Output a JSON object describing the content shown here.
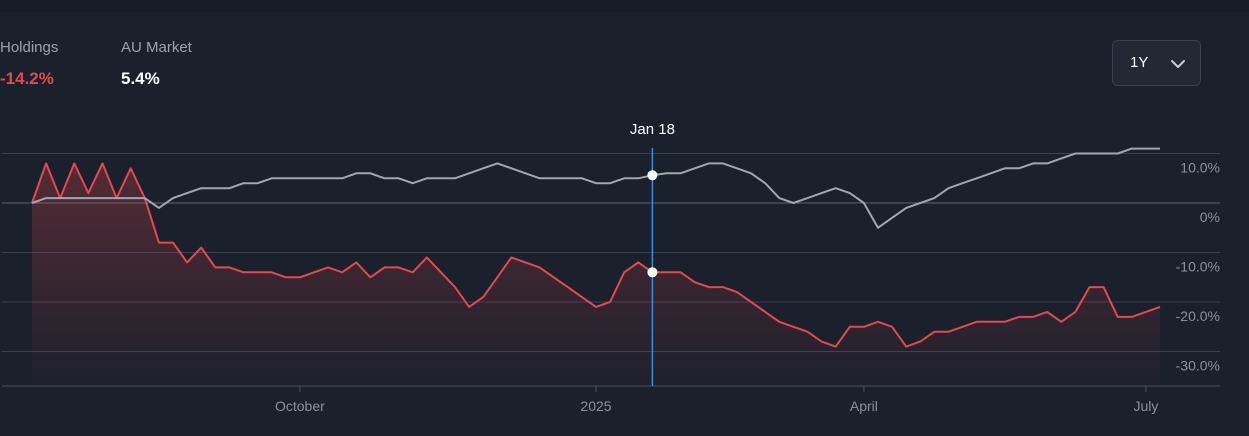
{
  "legend": {
    "holdings_label": "Holdings",
    "holdings_value": "-14.2%",
    "market_label": "AU Market",
    "market_value": "5.4%"
  },
  "period_select": {
    "selected": "1Y"
  },
  "chart_data": {
    "type": "line",
    "hover": {
      "label": "Jan 18",
      "index": 44,
      "holdings": -14.0,
      "market": 5.6
    },
    "x_ticks": [
      {
        "label": "October",
        "index": 19
      },
      {
        "label": "2025",
        "index": 40
      },
      {
        "label": "April",
        "index": 59
      },
      {
        "label": "July",
        "index": 79
      }
    ],
    "y_ticks": [
      {
        "label": "10.0%",
        "value": 10
      },
      {
        "label": "0%",
        "value": 0
      },
      {
        "label": "-10.0%",
        "value": -10
      },
      {
        "label": "-20.0%",
        "value": -20
      },
      {
        "label": "-30.0%",
        "value": -30
      }
    ],
    "ylim": [
      -37,
      11
    ],
    "series": [
      {
        "key": "holdings",
        "color": "#e5484d",
        "values": [
          0,
          8,
          1,
          8,
          2,
          8,
          1,
          7,
          1,
          -8,
          -8,
          -12,
          -9,
          -13,
          -13,
          -14,
          -14,
          -14,
          -15,
          -15,
          -14,
          -13,
          -14,
          -12,
          -15,
          -13,
          -13,
          -14,
          -11,
          -14,
          -17,
          -21,
          -19,
          -15,
          -11,
          -12,
          -13,
          -15,
          -17,
          -19,
          -21,
          -20,
          -14,
          -12,
          -14,
          -14,
          -14,
          -16,
          -17,
          -17,
          -18,
          -20,
          -22,
          -24,
          -25,
          -26,
          -28,
          -29,
          -25,
          -25,
          -24,
          -25,
          -29,
          -28,
          -26,
          -26,
          -25,
          -24,
          -24,
          -24,
          -23,
          -23,
          -22,
          -24,
          -22,
          -17,
          -17,
          -23,
          -23,
          -22,
          -21
        ]
      },
      {
        "key": "market",
        "color": "#a3a6ad",
        "values": [
          0,
          1,
          1,
          1,
          1,
          1,
          1,
          1,
          1,
          -1,
          1,
          2,
          3,
          3,
          3,
          4,
          4,
          5,
          5,
          5,
          5,
          5,
          5,
          6,
          6,
          5,
          5,
          4,
          5,
          5,
          5,
          6,
          7,
          8,
          7,
          6,
          5,
          5,
          5,
          5,
          4,
          4,
          5,
          5,
          5.6,
          6,
          6,
          7,
          8,
          8,
          7,
          6,
          4,
          1,
          0,
          1,
          2,
          3,
          2,
          0,
          -5,
          -3,
          -1,
          0,
          1,
          3,
          4,
          5,
          6,
          7,
          7,
          8,
          8,
          9,
          10,
          10,
          10,
          10,
          11,
          11,
          11
        ]
      }
    ]
  }
}
